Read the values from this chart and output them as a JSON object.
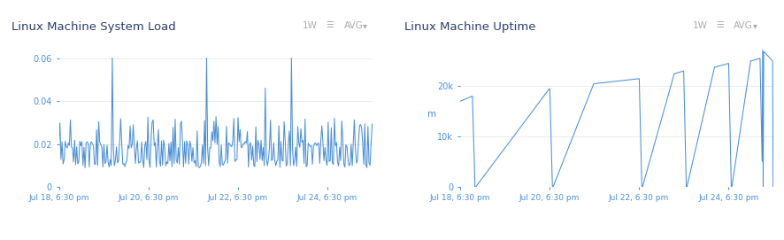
{
  "title1": "Linux Machine System Load",
  "title2": "Linux Machine Uptime",
  "line_color": "#4a90d9",
  "bg_color": "#ffffff",
  "grid_color": "#e8e8e8",
  "title_color": "#2c3e6b",
  "axis_label_color": "#4a90d9",
  "badge_color": "#aaaaaa",
  "xlabel_ticks": [
    "Jul 18, 6:30 pm",
    "Jul 20, 6:30 pm",
    "Jul 22, 6:30 pm",
    "Jul 24, 6:30 pm"
  ],
  "chart1_ylim": [
    0,
    0.068
  ],
  "chart2_ylim": [
    0,
    29000
  ],
  "uptime_ylabel": "m"
}
